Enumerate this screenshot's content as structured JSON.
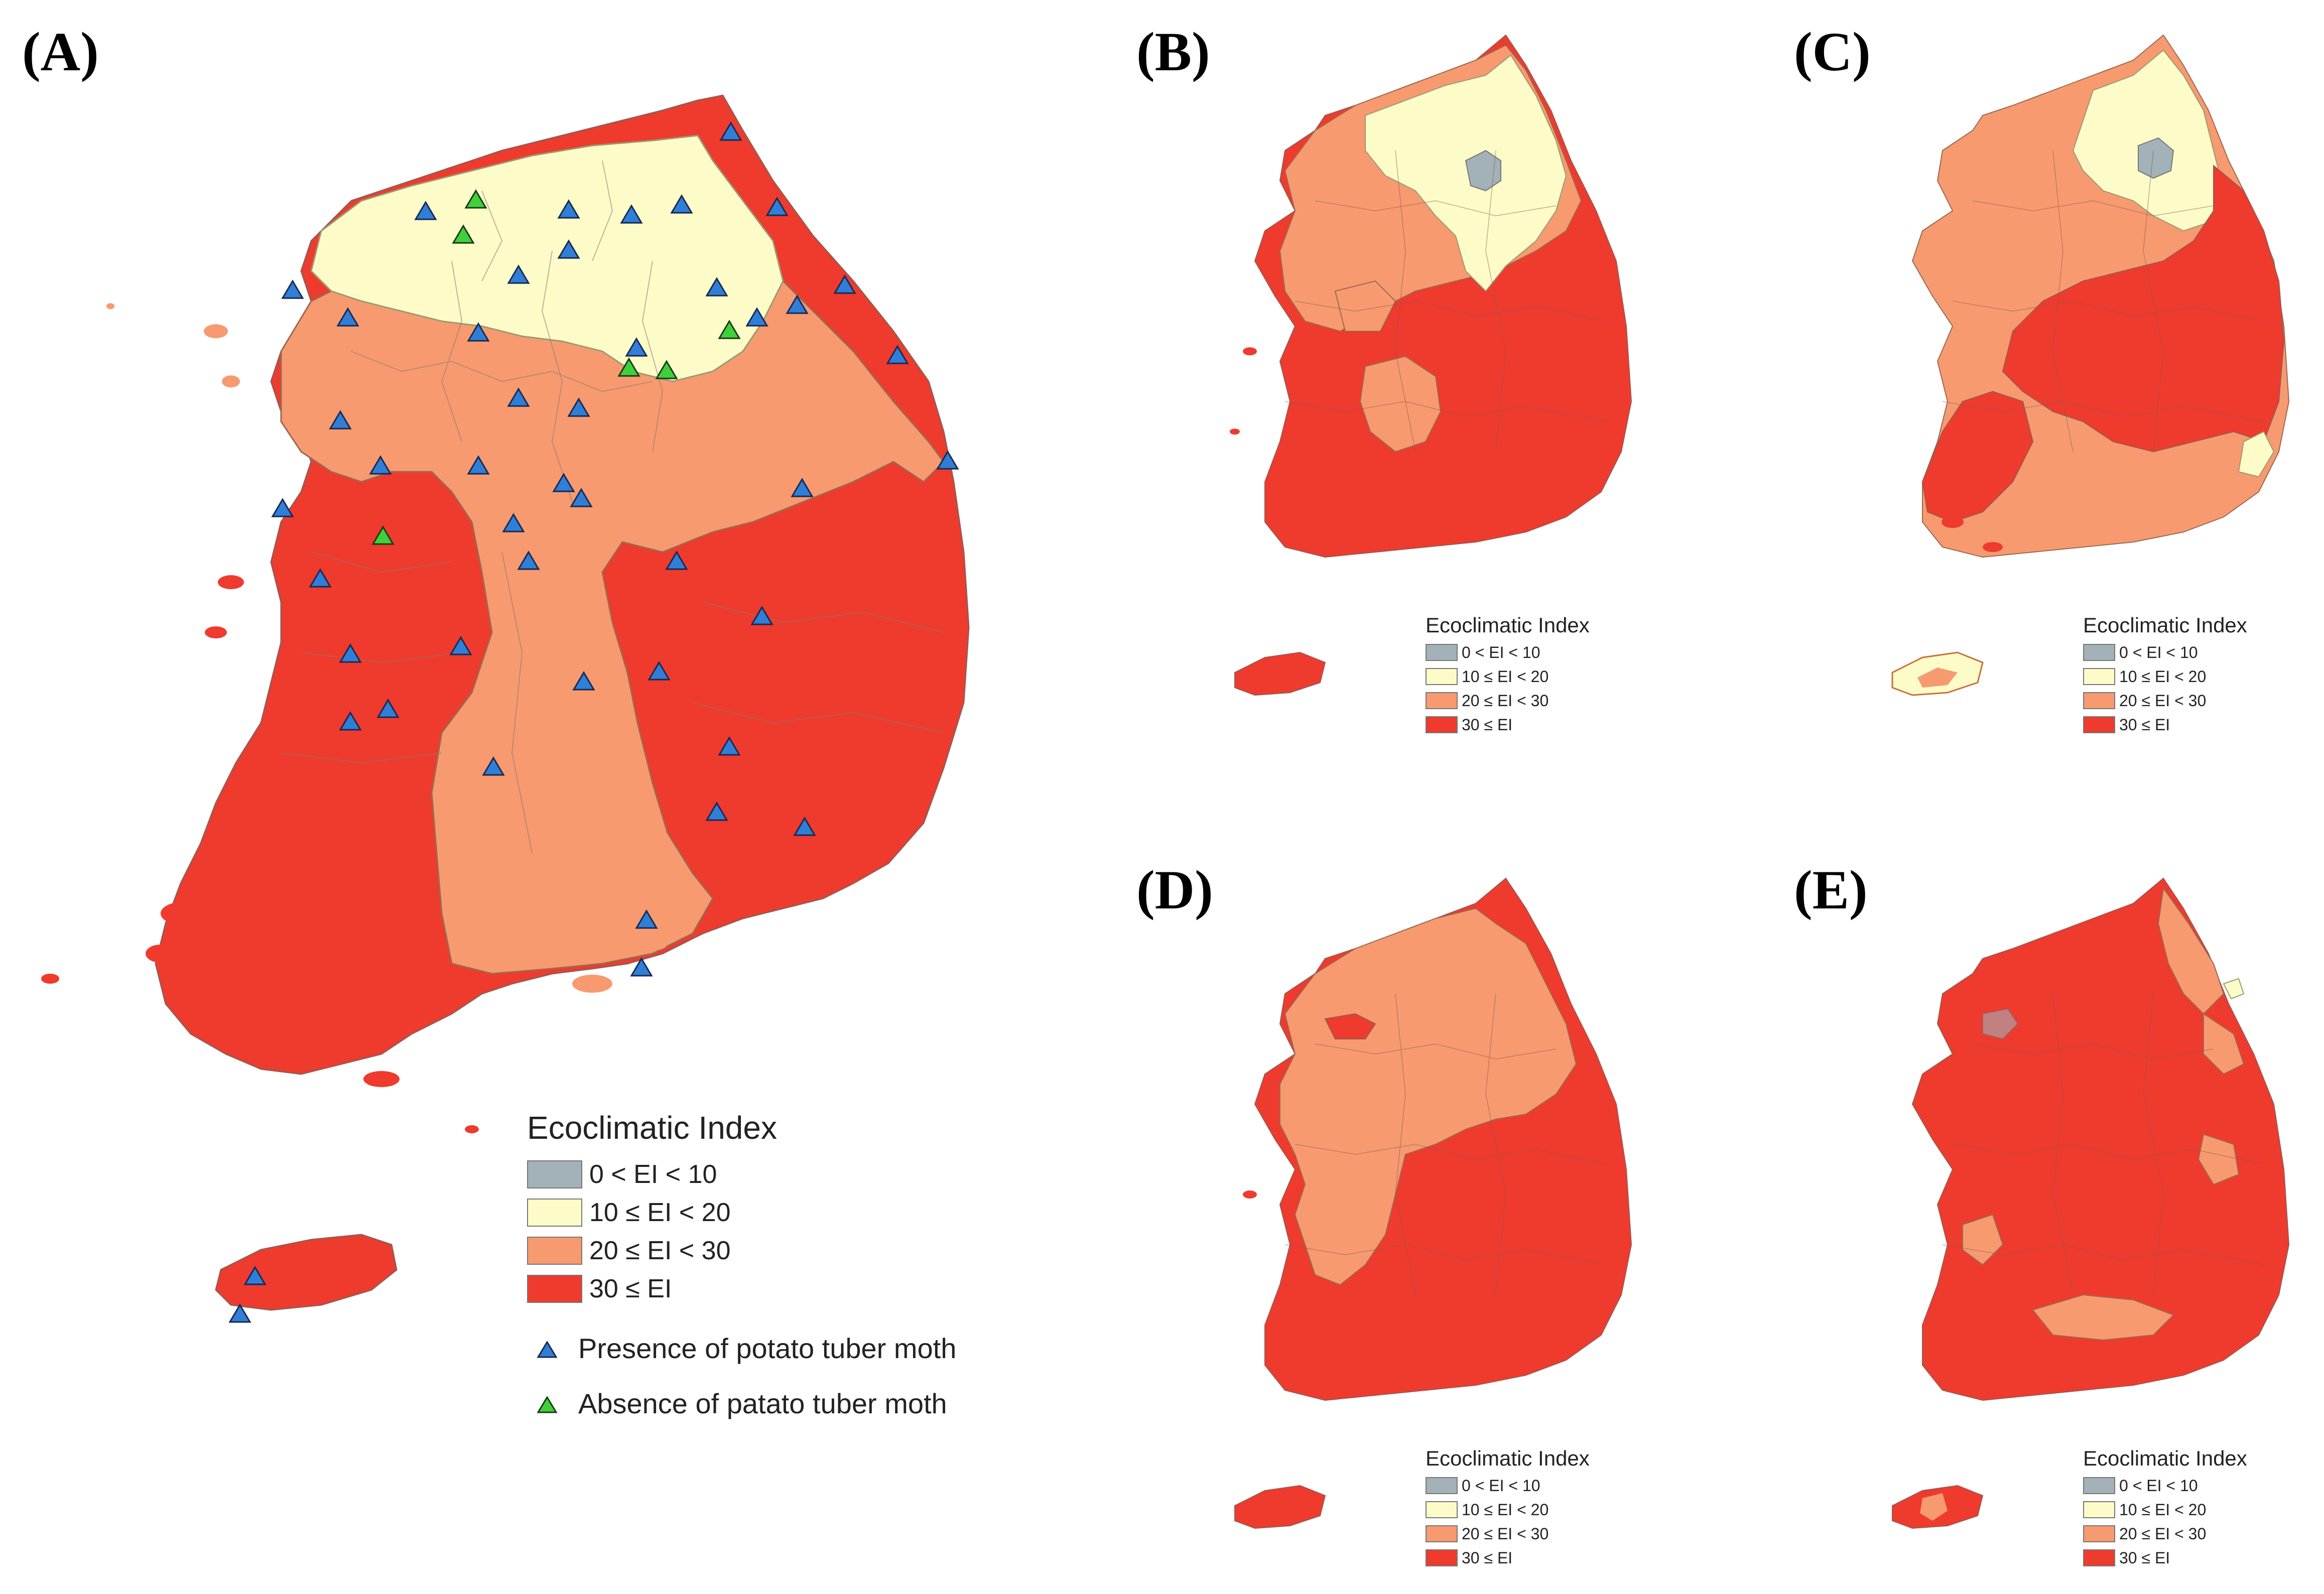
{
  "panels": [
    {
      "id": "A",
      "label": "(A)"
    },
    {
      "id": "B",
      "label": "(B)"
    },
    {
      "id": "C",
      "label": "(C)"
    },
    {
      "id": "D",
      "label": "(D)"
    },
    {
      "id": "E",
      "label": "(E)"
    }
  ],
  "legend": {
    "title": "Ecoclimatic Index",
    "classes": [
      {
        "label": "0 < EI < 10",
        "color": "#a3b1b8"
      },
      {
        "label": "10 ≤ EI < 20",
        "color": "#fdfcc8"
      },
      {
        "label": "20 ≤ EI < 30",
        "color": "#f79a70"
      },
      {
        "label": "30 ≤ EI",
        "color": "#ef3a2e"
      }
    ],
    "markers": [
      {
        "label": "Presence of potato tuber moth",
        "color": "#2f7fd9",
        "icon": "blue-triangle-icon"
      },
      {
        "label": "Absence of patato tuber moth",
        "color": "#3fd13a",
        "icon": "green-triangle-icon"
      }
    ]
  },
  "small_legend_classes": [
    {
      "label": "0 < EI < 10",
      "color": "#a3b1b8"
    },
    {
      "label": "10 ≤ EI < 20",
      "color": "#fdfcc8"
    },
    {
      "label": "20 ≤ EI < 30",
      "color": "#f79a70"
    },
    {
      "label": "30 ≤ EI",
      "color": "#ef3a2e"
    }
  ]
}
